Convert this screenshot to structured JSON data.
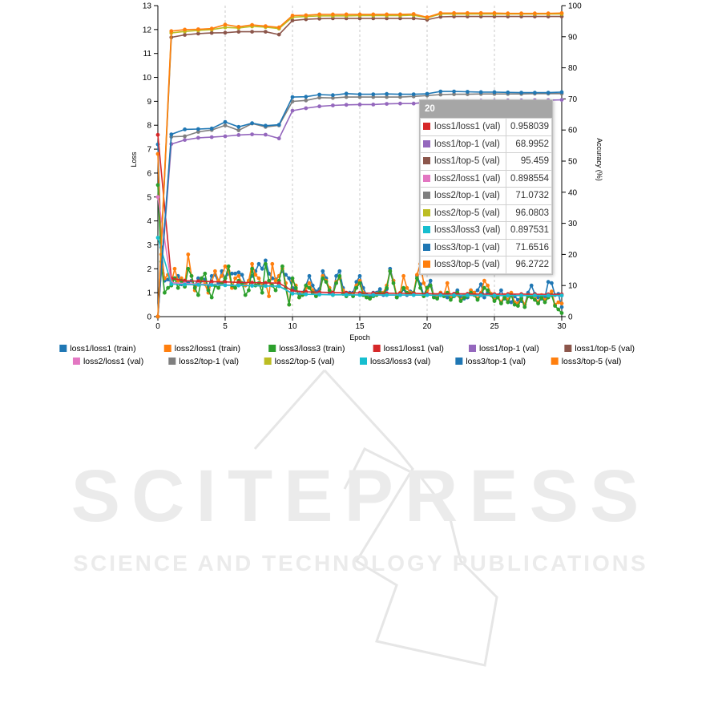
{
  "watermark": {
    "title": "SCITEPRESS",
    "subtitle": "SCIENCE AND TECHNOLOGY PUBLICATIONS",
    "color": "#e9e9e9"
  },
  "tooltip": {
    "header": "20",
    "rows": [
      {
        "name": "loss1/loss1 (val)",
        "value": "0.958039",
        "color": "#d62728"
      },
      {
        "name": "loss1/top-1 (val)",
        "value": "68.9952",
        "color": "#9467bd"
      },
      {
        "name": "loss1/top-5 (val)",
        "value": "95.459",
        "color": "#8c564b"
      },
      {
        "name": "loss2/loss1 (val)",
        "value": "0.898554",
        "color": "#e377c2"
      },
      {
        "name": "loss2/top-1 (val)",
        "value": "71.0732",
        "color": "#7f7f7f"
      },
      {
        "name": "loss2/top-5 (val)",
        "value": "96.0803",
        "color": "#bcbd22"
      },
      {
        "name": "loss3/loss3 (val)",
        "value": "0.897531",
        "color": "#17becf"
      },
      {
        "name": "loss3/top-1 (val)",
        "value": "71.6516",
        "color": "#1f77b4"
      },
      {
        "name": "loss3/top-5 (val)",
        "value": "96.2722",
        "color": "#ff7f0e"
      }
    ]
  },
  "chart_data": {
    "type": "line",
    "xlabel": "Epoch",
    "ylabel": "Loss",
    "y2label": "Accuracy (%)",
    "xlim": [
      0,
      30
    ],
    "ylim": [
      0,
      13
    ],
    "y2lim": [
      0,
      100
    ],
    "xticks": [
      0,
      5,
      10,
      15,
      20,
      25,
      30
    ],
    "yticks": [
      0,
      1,
      2,
      3,
      4,
      5,
      6,
      7,
      8,
      9,
      10,
      11,
      12,
      13
    ],
    "y2ticks": [
      0,
      10,
      20,
      30,
      40,
      50,
      60,
      70,
      80,
      90,
      100
    ],
    "grid": "vertical dashed at x ticks",
    "legend_position": "bottom",
    "series": [
      {
        "name": "loss1/loss1 (train)",
        "axis": "loss",
        "color": "#1f77b4",
        "x_step": 0.25,
        "values": [
          7.2,
          2.9,
          1.5,
          1.55,
          1.45,
          1.6,
          1.7,
          1.35,
          1.5,
          1.4,
          1.5,
          1.3,
          1.6,
          1.5,
          1.55,
          1.2,
          1.7,
          1.75,
          1.4,
          1.9,
          1.6,
          1.8,
          1.8,
          1.8,
          1.85,
          1.75,
          1.35,
          1.5,
          1.7,
          1.9,
          2.2,
          2.0,
          2.35,
          1.8,
          1.6,
          1.55,
          1.7,
          1.9,
          1.75,
          1.6,
          1.2,
          1.1,
          0.95,
          1.0,
          1.3,
          1.7,
          1.3,
          1.05,
          1.15,
          1.9,
          1.6,
          1.0,
          0.95,
          1.7,
          1.9,
          1.2,
          0.9,
          1.0,
          1.0,
          1.45,
          1.7,
          1.2,
          0.9,
          0.85,
          1.0,
          1.0,
          1.15,
          0.9,
          1.15,
          2.0,
          1.5,
          0.8,
          0.9,
          1.15,
          0.9,
          1.05,
          0.9,
          1.7,
          1.35,
          0.9,
          1.2,
          1.5,
          0.85,
          0.8,
          1.0,
          0.9,
          0.8,
          0.8,
          0.95,
          1.1,
          0.8,
          0.75,
          0.8,
          1.1,
          1.0,
          1.1,
          1.35,
          0.8,
          1.0,
          0.95,
          0.85,
          0.85,
          1.1,
          0.75,
          0.7,
          0.6,
          0.85,
          0.7,
          0.65,
          0.5,
          1.0,
          1.3,
          0.95,
          0.8,
          0.75,
          0.8,
          1.45,
          1.4,
          0.9,
          0.95,
          0.4
        ]
      },
      {
        "name": "loss2/loss1 (train)",
        "axis": "loss",
        "color": "#ff7f0e",
        "x_step": 0.25,
        "values": [
          6.8,
          2.6,
          1.6,
          1.75,
          1.4,
          2.0,
          1.5,
          1.6,
          1.3,
          2.6,
          1.7,
          1.1,
          1.4,
          1.6,
          1.35,
          1.0,
          1.45,
          1.9,
          1.5,
          1.7,
          2.1,
          1.9,
          1.2,
          1.6,
          1.7,
          1.4,
          1.3,
          1.5,
          2.2,
          1.75,
          1.6,
          1.3,
          1.4,
          0.85,
          2.2,
          1.5,
          1.7,
          2.0,
          1.4,
          0.5,
          1.5,
          1.3,
          0.8,
          0.95,
          1.2,
          1.4,
          1.1,
          0.9,
          1.0,
          1.7,
          1.5,
          1.2,
          0.95,
          1.45,
          1.6,
          1.1,
          0.9,
          0.95,
          0.9,
          1.3,
          1.5,
          1.0,
          0.85,
          0.75,
          0.9,
          0.95,
          1.0,
          1.0,
          1.3,
          1.9,
          1.5,
          0.85,
          1.0,
          1.7,
          1.2,
          1.0,
          1.0,
          1.75,
          2.2,
          1.4,
          1.1,
          1.3,
          0.9,
          0.9,
          1.0,
          0.9,
          1.4,
          0.8,
          0.95,
          0.9,
          0.7,
          0.9,
          0.9,
          1.1,
          1.0,
          0.75,
          1.0,
          1.5,
          1.3,
          0.95,
          0.7,
          0.85,
          0.6,
          0.9,
          0.7,
          1.0,
          0.6,
          0.55,
          0.8,
          0.5,
          0.9,
          0.85,
          0.8,
          0.6,
          0.9,
          0.7,
          0.85,
          1.05,
          0.5,
          0.6,
          0.55
        ]
      },
      {
        "name": "loss3/loss3 (train)",
        "axis": "loss",
        "color": "#2ca02c",
        "x_step": 0.25,
        "values": [
          5.5,
          2.3,
          1.0,
          1.2,
          1.3,
          1.6,
          1.2,
          1.5,
          1.25,
          2.0,
          1.7,
          1.2,
          0.9,
          1.6,
          1.8,
          1.1,
          0.8,
          1.3,
          1.2,
          1.4,
          1.6,
          2.1,
          1.3,
          1.2,
          1.5,
          1.4,
          0.9,
          1.1,
          2.0,
          1.3,
          1.4,
          1.0,
          2.2,
          1.5,
          1.3,
          1.1,
          1.5,
          2.1,
          1.2,
          0.5,
          1.6,
          1.2,
          0.8,
          0.9,
          1.3,
          1.2,
          1.0,
          0.85,
          0.95,
          1.6,
          1.45,
          1.1,
          0.9,
          1.4,
          1.7,
          0.95,
          0.85,
          0.95,
          0.85,
          1.2,
          1.4,
          0.9,
          0.8,
          0.75,
          0.85,
          0.9,
          1.0,
          0.95,
          1.2,
          1.9,
          1.4,
          0.8,
          0.9,
          1.2,
          1.0,
          0.95,
          1.0,
          1.6,
          1.2,
          0.85,
          1.2,
          1.3,
          0.8,
          0.75,
          0.95,
          0.85,
          1.0,
          0.7,
          0.85,
          1.0,
          0.65,
          0.8,
          0.85,
          1.0,
          0.9,
          0.7,
          0.9,
          1.2,
          1.1,
          0.9,
          0.65,
          0.8,
          0.55,
          0.8,
          0.6,
          0.9,
          0.5,
          0.45,
          0.75,
          0.4,
          0.85,
          0.8,
          0.7,
          0.55,
          0.8,
          0.6,
          0.8,
          0.9,
          0.45,
          0.3,
          0.15
        ]
      },
      {
        "name": "loss1/loss1 (val)",
        "axis": "loss",
        "color": "#d62728",
        "x": [
          0,
          1,
          2,
          3,
          4,
          5,
          6,
          7,
          8,
          9,
          10,
          11,
          12,
          13,
          14,
          15,
          16,
          17,
          18,
          19,
          20,
          21,
          22,
          23,
          24,
          25,
          26,
          27,
          28,
          29,
          30
        ],
        "values": [
          7.6,
          1.6,
          1.5,
          1.48,
          1.46,
          1.45,
          1.43,
          1.42,
          1.41,
          1.4,
          1.08,
          1.04,
          1.02,
          1.01,
          1.0,
          0.99,
          0.98,
          0.98,
          0.97,
          0.97,
          0.958,
          0.95,
          0.95,
          0.95,
          0.94,
          0.94,
          0.94,
          0.94,
          0.93,
          0.93,
          0.93
        ]
      },
      {
        "name": "loss1/top-1 (val)",
        "axis": "accuracy",
        "color": "#9467bd",
        "x": [
          0,
          1,
          2,
          3,
          4,
          5,
          6,
          7,
          8,
          9,
          10,
          11,
          12,
          13,
          14,
          15,
          16,
          17,
          18,
          19,
          20,
          21,
          22,
          23,
          24,
          25,
          26,
          27,
          28,
          29,
          30
        ],
        "values": [
          0,
          55.5,
          56.8,
          57.5,
          57.7,
          58.0,
          58.4,
          58.6,
          58.5,
          57.3,
          66.2,
          67.0,
          67.6,
          67.9,
          68.1,
          68.2,
          68.2,
          68.4,
          68.5,
          68.5,
          68.9952,
          69.2,
          69.3,
          69.3,
          69.4,
          69.4,
          69.5,
          69.5,
          69.6,
          69.6,
          69.7
        ]
      },
      {
        "name": "loss1/top-5 (val)",
        "axis": "accuracy",
        "color": "#8c564b",
        "x": [
          0,
          1,
          2,
          3,
          4,
          5,
          6,
          7,
          8,
          9,
          10,
          11,
          12,
          13,
          14,
          15,
          16,
          17,
          18,
          19,
          20,
          21,
          22,
          23,
          24,
          25,
          26,
          27,
          28,
          29,
          30
        ],
        "values": [
          0,
          89.8,
          90.6,
          91.0,
          91.2,
          91.3,
          91.6,
          91.6,
          91.6,
          90.7,
          95.2,
          95.6,
          95.8,
          95.9,
          95.9,
          95.9,
          95.9,
          95.9,
          95.9,
          95.9,
          95.459,
          96.4,
          96.5,
          96.5,
          96.5,
          96.5,
          96.5,
          96.5,
          96.5,
          96.5,
          96.5
        ]
      },
      {
        "name": "loss2/loss1 (val)",
        "axis": "loss",
        "color": "#e377c2",
        "x": [
          0,
          1,
          2,
          3,
          4,
          5,
          6,
          7,
          8,
          9,
          10,
          11,
          12,
          13,
          14,
          15,
          16,
          17,
          18,
          19,
          20,
          21,
          22,
          23,
          24,
          25,
          26,
          27,
          28,
          29,
          30
        ],
        "values": [
          5.0,
          1.42,
          1.38,
          1.36,
          1.34,
          1.33,
          1.31,
          1.3,
          1.29,
          1.28,
          0.97,
          0.94,
          0.93,
          0.92,
          0.92,
          0.91,
          0.91,
          0.9,
          0.9,
          0.9,
          0.899,
          0.89,
          0.89,
          0.89,
          0.88,
          0.88,
          0.88,
          0.88,
          0.88,
          0.88,
          0.88
        ]
      },
      {
        "name": "loss2/top-1 (val)",
        "axis": "accuracy",
        "color": "#7f7f7f",
        "x": [
          0,
          1,
          2,
          3,
          4,
          5,
          6,
          7,
          8,
          9,
          10,
          11,
          12,
          13,
          14,
          15,
          16,
          17,
          18,
          19,
          20,
          21,
          22,
          23,
          24,
          25,
          26,
          27,
          28,
          29,
          30
        ],
        "values": [
          0,
          57.8,
          58.0,
          59.4,
          60.0,
          61.5,
          59.9,
          62.1,
          61.0,
          61.5,
          69.2,
          69.5,
          70.4,
          70.3,
          70.6,
          70.6,
          70.6,
          70.6,
          70.6,
          70.8,
          71.0732,
          71.4,
          71.5,
          71.5,
          71.6,
          71.6,
          71.6,
          71.6,
          71.7,
          71.7,
          71.7
        ]
      },
      {
        "name": "loss2/top-5 (val)",
        "axis": "accuracy",
        "color": "#bcbd22",
        "x": [
          0,
          1,
          2,
          3,
          4,
          5,
          6,
          7,
          8,
          9,
          10,
          11,
          12,
          13,
          14,
          15,
          16,
          17,
          18,
          19,
          20,
          21,
          22,
          23,
          24,
          25,
          26,
          27,
          28,
          29,
          30
        ],
        "values": [
          0,
          91.2,
          91.7,
          92.0,
          92.3,
          93.0,
          92.8,
          93.3,
          93.1,
          92.6,
          96.3,
          96.5,
          96.7,
          96.7,
          96.7,
          96.8,
          96.8,
          96.8,
          96.8,
          96.9,
          96.0803,
          97.3,
          97.3,
          97.3,
          97.3,
          97.3,
          97.3,
          97.3,
          97.3,
          97.3,
          97.3
        ]
      },
      {
        "name": "loss3/loss3 (val)",
        "axis": "loss",
        "color": "#17becf",
        "x": [
          0,
          1,
          2,
          3,
          4,
          5,
          6,
          7,
          8,
          9,
          10,
          11,
          12,
          13,
          14,
          15,
          16,
          17,
          18,
          19,
          20,
          21,
          22,
          23,
          24,
          25,
          26,
          27,
          28,
          29,
          30
        ],
        "values": [
          3.3,
          1.36,
          1.34,
          1.33,
          1.32,
          1.31,
          1.3,
          1.29,
          1.28,
          1.27,
          0.96,
          0.93,
          0.92,
          0.91,
          0.91,
          0.9,
          0.9,
          0.9,
          0.9,
          0.9,
          0.898,
          0.89,
          0.89,
          0.89,
          0.89,
          0.88,
          0.88,
          0.88,
          0.88,
          0.88,
          0.88
        ]
      },
      {
        "name": "loss3/top-1 (val)",
        "axis": "accuracy",
        "color": "#1f77b4",
        "x": [
          0,
          1,
          2,
          3,
          4,
          5,
          6,
          7,
          8,
          9,
          10,
          11,
          12,
          13,
          14,
          15,
          16,
          17,
          18,
          19,
          20,
          21,
          22,
          23,
          24,
          25,
          26,
          27,
          28,
          29,
          30
        ],
        "values": [
          0,
          58.6,
          60.2,
          60.3,
          60.5,
          62.6,
          61.0,
          62.2,
          61.4,
          61.7,
          70.6,
          70.7,
          71.4,
          71.2,
          71.7,
          71.5,
          71.5,
          71.6,
          71.5,
          71.5,
          71.6516,
          72.4,
          72.4,
          72.3,
          72.2,
          72.2,
          72.1,
          72.0,
          72.0,
          72.0,
          72.2
        ]
      },
      {
        "name": "loss3/top-5 (val)",
        "axis": "accuracy",
        "color": "#ff7f0e",
        "x": [
          0,
          1,
          2,
          3,
          4,
          5,
          6,
          7,
          8,
          9,
          10,
          11,
          12,
          13,
          14,
          15,
          16,
          17,
          18,
          19,
          20,
          21,
          22,
          23,
          24,
          25,
          26,
          27,
          28,
          29,
          30
        ],
        "values": [
          0,
          91.8,
          92.3,
          92.4,
          92.6,
          93.9,
          93.2,
          93.8,
          93.4,
          93.0,
          96.8,
          96.9,
          97.2,
          97.2,
          97.2,
          97.2,
          97.2,
          97.2,
          97.2,
          97.3,
          96.2722,
          97.6,
          97.6,
          97.6,
          97.6,
          97.6,
          97.5,
          97.5,
          97.5,
          97.5,
          97.6
        ]
      }
    ]
  }
}
